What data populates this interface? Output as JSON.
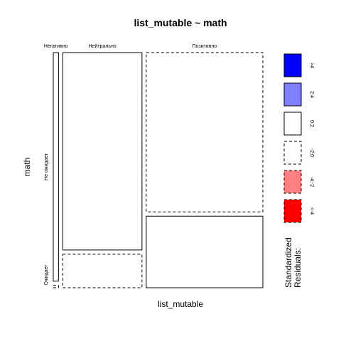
{
  "chart_data": {
    "type": "mosaic",
    "title": "list_mutable ~ math",
    "xlabel": "list_mutable",
    "ylabel": "math",
    "x_categories": [
      "Негативно",
      "Нейтрально",
      "Позитивно"
    ],
    "y_categories": [
      "Не ожидает",
      "Ожидает"
    ],
    "column_proportions": [
      0.026,
      0.394,
      0.58
    ],
    "cells": [
      {
        "x": "Негативно",
        "y": "Не ожидает",
        "row_fraction": 0.99,
        "residual_class": "0:2"
      },
      {
        "x": "Негативно",
        "y": "Ожидает",
        "row_fraction": 0.01,
        "residual_class": "-2:0"
      },
      {
        "x": "Нейтрально",
        "y": "Не ожидает",
        "row_fraction": 0.855,
        "residual_class": "0:2"
      },
      {
        "x": "Нейтрально",
        "y": "Ожидает",
        "row_fraction": 0.145,
        "residual_class": "-2:0"
      },
      {
        "x": "Позитивно",
        "y": "Не ожидает",
        "row_fraction": 0.69,
        "residual_class": "-2:0"
      },
      {
        "x": "Позитивно",
        "y": "Ожидает",
        "row_fraction": 0.31,
        "residual_class": "0:2"
      }
    ],
    "legend": {
      "title_lines": [
        "Standardized",
        "Residuals:"
      ],
      "placement": "right",
      "entries": [
        {
          "label": ">4",
          "fill": "#0000ff",
          "dashed": false
        },
        {
          "label": "2:4",
          "fill": "#8080ff",
          "dashed": false
        },
        {
          "label": "0:2",
          "fill": "#ffffff",
          "dashed": false
        },
        {
          "label": "-2:0",
          "fill": "#ffffff",
          "dashed": true
        },
        {
          "label": "-4:-2",
          "fill": "#ff8080",
          "dashed": true
        },
        {
          "label": "<-4",
          "fill": "#ff0000",
          "dashed": true
        }
      ]
    }
  }
}
